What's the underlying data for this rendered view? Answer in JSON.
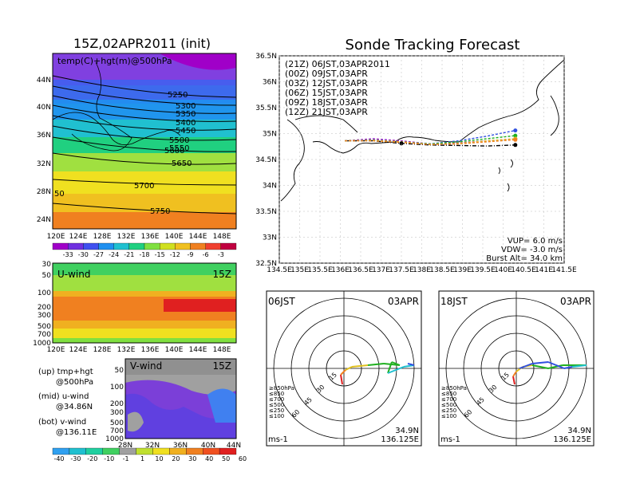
{
  "left_panel": {
    "title": "15Z,02APR2011 (init)",
    "map_label": "temp(C)+hgt(m)@500hPa",
    "lat_labels": [
      "44N",
      "40N",
      "36N",
      "32N",
      "28N",
      "24N"
    ],
    "lon_labels": [
      "120E",
      "124E",
      "128E",
      "132E",
      "136E",
      "140E",
      "144E",
      "148E"
    ],
    "contour_labels": [
      "5250",
      "5300",
      "5350",
      "5400",
      "5450",
      "5500",
      "5550",
      "5600",
      "5650",
      "5700",
      "5750",
      "50"
    ],
    "temp_colorbar": {
      "labels": [
        "-33",
        "-30",
        "-27",
        "-24",
        "-21",
        "-18",
        "-15",
        "-12",
        "-9",
        "-6",
        "-3"
      ],
      "colors": [
        "#a000c8",
        "#7030e0",
        "#4050f0",
        "#2090f0",
        "#20c0d0",
        "#20d080",
        "#80e040",
        "#d0e020",
        "#f0c020",
        "#f08020",
        "#f04030",
        "#c00040"
      ]
    }
  },
  "uwind_panel": {
    "label": "U-wind",
    "time": "15Z",
    "p_labels": [
      "30",
      "50",
      "100",
      "200",
      "300",
      "500",
      "700",
      "1000"
    ],
    "lon_labels": [
      "120E",
      "124E",
      "128E",
      "132E",
      "136E",
      "140E",
      "144E",
      "148E"
    ]
  },
  "vwind_panel": {
    "label": "V-wind",
    "time": "15Z",
    "p_labels": [
      "50",
      "100",
      "200",
      "300",
      "500",
      "700",
      "1000"
    ],
    "lat_labels": [
      "28N",
      "32N",
      "36N",
      "40N",
      "44N"
    ]
  },
  "captions": {
    "up1": "(up) tmp+hgt",
    "up2": "@500hPa",
    "mid1": "(mid) u-wind",
    "mid2": "@34.86N",
    "bot1": "(bot) v-wind",
    "bot2": "@136.11E"
  },
  "wind_colorbar": {
    "labels": [
      "-40",
      "-30",
      "-20",
      "-10",
      "-1",
      "1",
      "10",
      "20",
      "30",
      "40",
      "50",
      "60"
    ],
    "colors": [
      "#30a0f0",
      "#20c0d0",
      "#20d0a0",
      "#40d060",
      "#a0a0a0",
      "#c0e030",
      "#f0e020",
      "#f0b020",
      "#f08020",
      "#f05020",
      "#e02020"
    ]
  },
  "track_panel": {
    "title": "Sonde Tracking Forecast",
    "lat_labels": [
      "36.5N",
      "36N",
      "35.5N",
      "35N",
      "34.5N",
      "34N",
      "33.5N",
      "33N",
      "32.5N"
    ],
    "lon_labels": [
      "134.5E",
      "135E",
      "135.5E",
      "136E",
      "136.5E",
      "137E",
      "137.5E",
      "138E",
      "138.5E",
      "139E",
      "139.5E",
      "140E",
      "140.5E",
      "141E",
      "141.5E"
    ],
    "vup": "VUP=  6.0  m/s",
    "vdw": "VDW= -3.0  m/s",
    "burst": "Burst Alt= 34.0  km"
  },
  "chart_data": [
    {
      "type": "line",
      "title": "Sonde Tracking Forecast",
      "xlim": [
        134.5,
        141.5
      ],
      "ylim": [
        32.5,
        36.5
      ],
      "series": [
        {
          "name": "(21Z)  06JST,03APR2011",
          "color": "#000000",
          "x": [
            136.11,
            136.8,
            137.5,
            138.2,
            138.9,
            139.6,
            140.3
          ],
          "y": [
            34.86,
            34.86,
            34.81,
            34.78,
            34.77,
            34.76,
            34.78
          ]
        },
        {
          "name": "(00Z)  09JST,03APR",
          "color": "#a020c0",
          "x": [
            136.11,
            136.8,
            137.5,
            138.2,
            138.9,
            139.6,
            140.3
          ],
          "y": [
            34.86,
            34.9,
            34.86,
            34.8,
            34.82,
            34.86,
            34.9
          ]
        },
        {
          "name": "(03Z)  12JST,03APR",
          "color": "#3050e0",
          "x": [
            136.11,
            136.8,
            137.5,
            138.2,
            138.9,
            139.6,
            140.3
          ],
          "y": [
            34.86,
            34.88,
            34.84,
            34.8,
            34.86,
            34.95,
            35.06
          ]
        },
        {
          "name": "(06Z)  15JST,03APR",
          "color": "#20b020",
          "x": [
            136.11,
            136.8,
            137.5,
            138.2,
            138.9,
            139.6,
            140.3
          ],
          "y": [
            34.86,
            34.87,
            34.84,
            34.8,
            34.84,
            34.9,
            34.96
          ]
        },
        {
          "name": "(09Z)  18JST,03APR",
          "color": "#e0c020",
          "x": [
            136.11,
            136.8,
            137.5,
            138.2,
            138.9,
            139.6,
            140.3
          ],
          "y": [
            34.86,
            34.87,
            34.84,
            34.79,
            34.81,
            34.86,
            34.9
          ]
        },
        {
          "name": "(12Z)  21JST,03APR",
          "color": "#f08020",
          "x": [
            136.11,
            136.8,
            137.5,
            138.2,
            138.9,
            139.6,
            140.3
          ],
          "y": [
            34.86,
            34.86,
            34.83,
            34.79,
            34.8,
            34.84,
            34.88
          ]
        }
      ]
    }
  ],
  "hodo1": {
    "label": "06JST",
    "date": "03APR",
    "lat": "34.9N",
    "lon": "136.125E",
    "unit": "ms-1"
  },
  "hodo2": {
    "label": "18JST",
    "date": "03APR",
    "lat": "34.9N",
    "lon": "136.125E",
    "unit": "ms-1"
  },
  "hodo_rings": [
    "15",
    "30",
    "45",
    "60"
  ],
  "hodo_legend": [
    {
      "text": "≥850hPa",
      "color": "#e02020"
    },
    {
      "text": "≤850",
      "color": "#f08020"
    },
    {
      "text": "≤700",
      "color": "#e0c020"
    },
    {
      "text": "≤500",
      "color": "#20b020"
    },
    {
      "text": "≤250",
      "color": "#20c0d0"
    },
    {
      "text": "≤100",
      "color": "#3050e0"
    }
  ]
}
